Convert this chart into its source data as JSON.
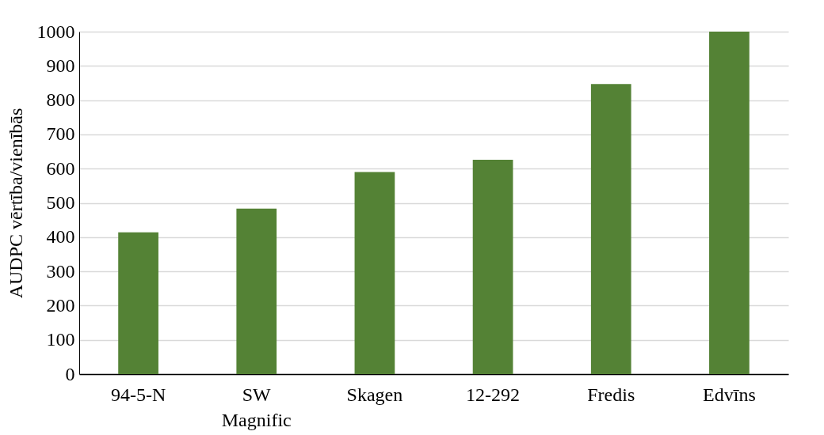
{
  "chart_data": {
    "type": "bar",
    "ylabel": "AUDPC vērtība/vienībās",
    "categories": [
      "94-5-N",
      "SW Magnific",
      "Skagen",
      "12-292",
      "Fredis",
      "Edvīns"
    ],
    "values": [
      414,
      483,
      590,
      626,
      847,
      1000
    ],
    "color": "#548235",
    "ylim": [
      0,
      1000
    ],
    "yticks": [
      0,
      100,
      200,
      300,
      400,
      500,
      600,
      700,
      800,
      900,
      1000
    ],
    "grid": "y"
  }
}
